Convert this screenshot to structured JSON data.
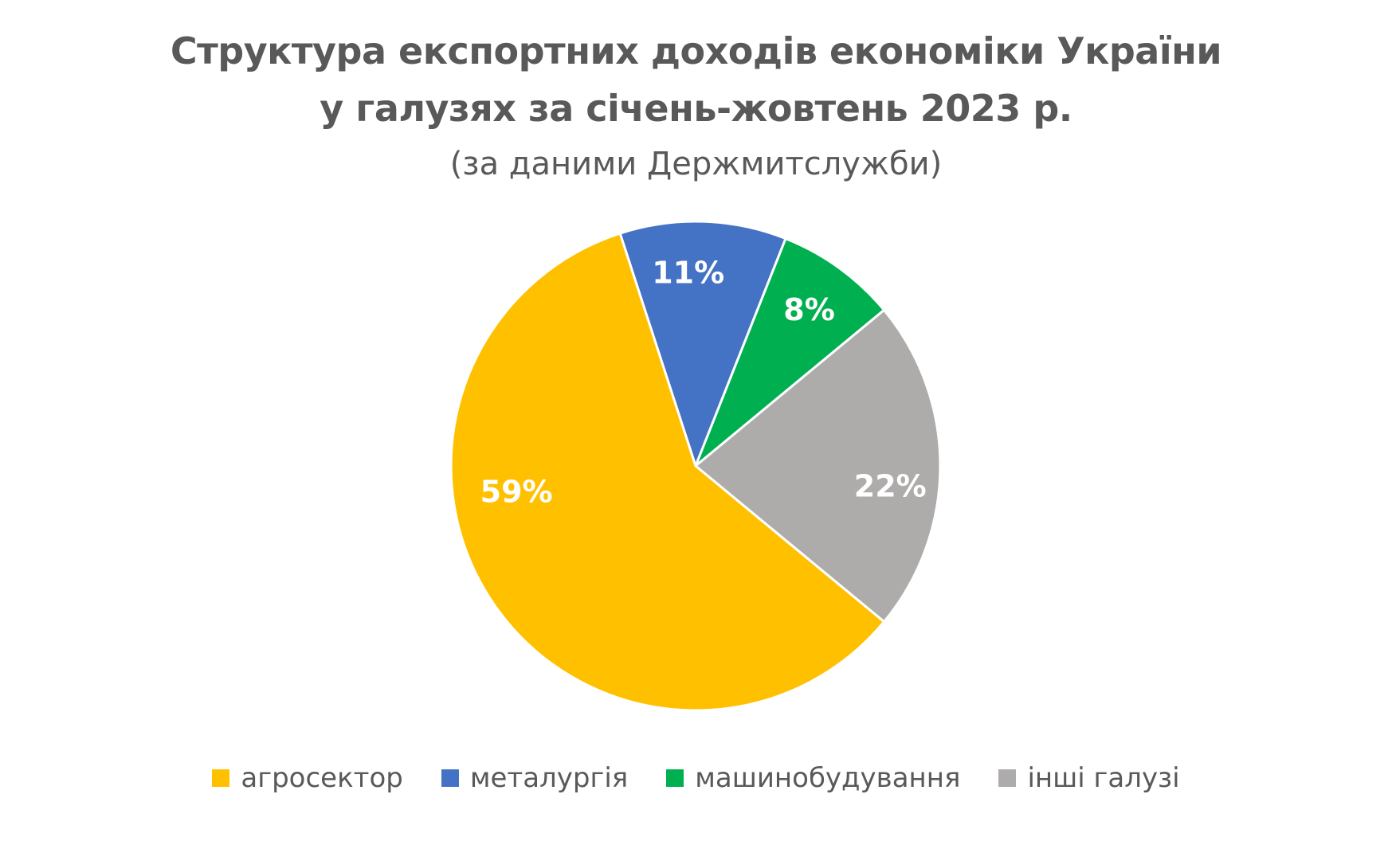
{
  "chart_data": {
    "type": "pie",
    "title_line1": "Структура експортних доходів економіки України",
    "title_line2": "у галузях за січень-жовтень 2023 р.",
    "subtitle": "(за даними Держмитслужби)",
    "legend_position": "bottom",
    "start_angle_deg": 0,
    "direction": "clockwise",
    "slices": [
      {
        "name": "металургія",
        "value": 11,
        "label": "11%",
        "color": "#4472C4"
      },
      {
        "name": "машинобудування",
        "value": 8,
        "label": "8%",
        "color": "#00B050"
      },
      {
        "name": "інші галузі",
        "value": 22,
        "label": "22%",
        "color": "#AEABAB"
      },
      {
        "name": "агросектор",
        "value": 59,
        "label": "59%",
        "color": "#FFC000"
      }
    ],
    "legend_order": [
      "агросектор",
      "металургія",
      "машинобудування",
      "інші галузі"
    ]
  }
}
